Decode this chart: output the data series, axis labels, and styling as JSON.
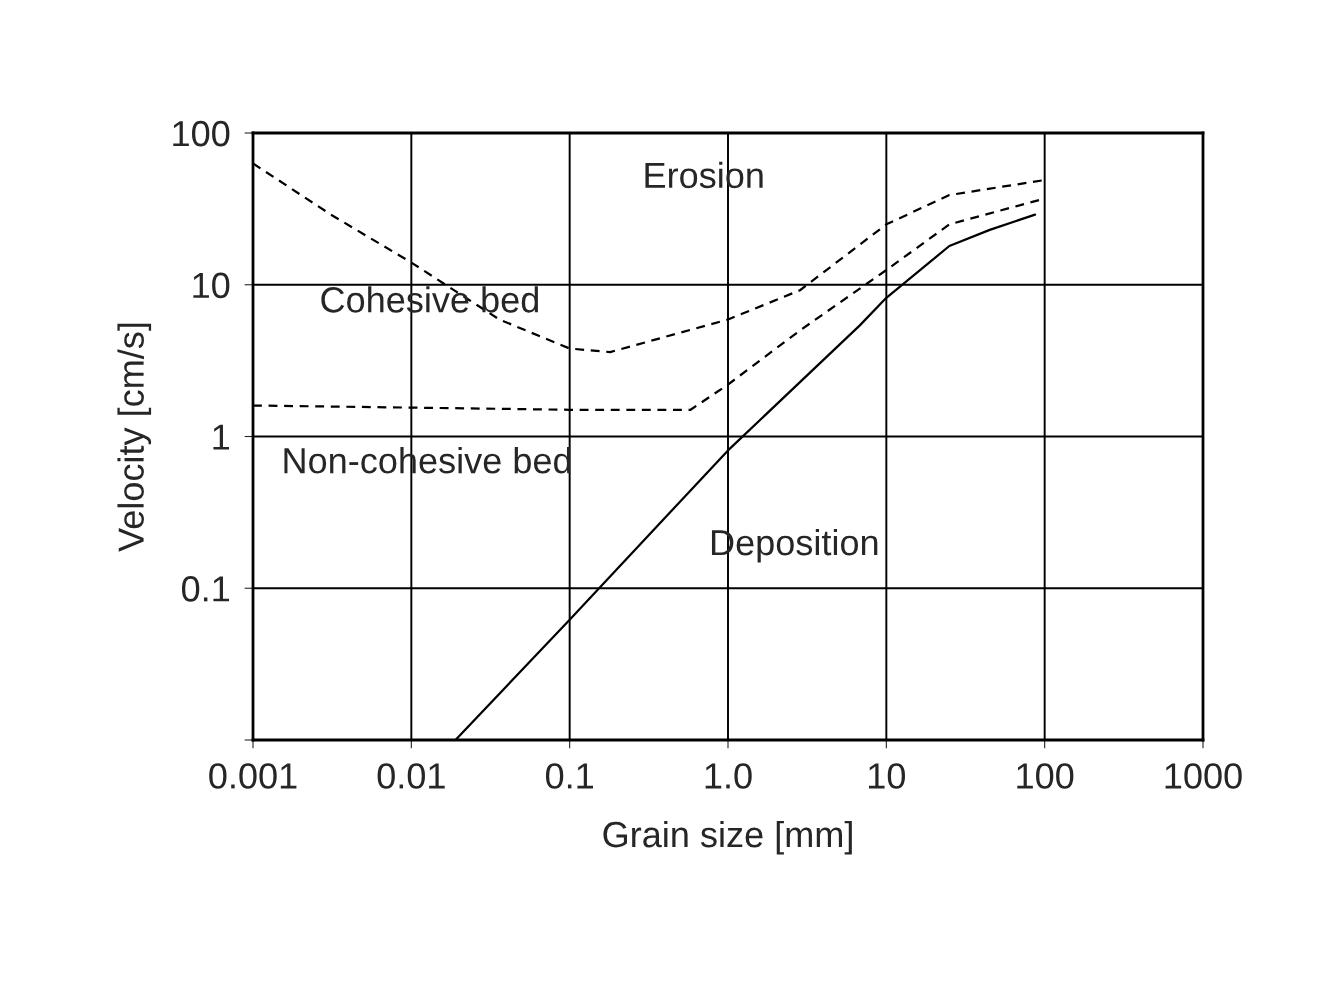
{
  "chart_data": {
    "type": "line",
    "xlabel": "Grain size [mm]",
    "ylabel": "Velocity [cm/s]",
    "log": "xy",
    "grid": true,
    "legend": false,
    "marker": "none",
    "xlim": [
      0.001,
      1000
    ],
    "ylim": [
      0.01,
      100
    ],
    "xticks": [
      0.001,
      0.01,
      0.1,
      {
        "value": 1,
        "label": "1.0"
      },
      10,
      100,
      1000
    ],
    "yticks": [
      {
        "value": 0.01,
        "label": null
      },
      0.1,
      1,
      10,
      100
    ],
    "series": [
      {
        "color": "#000000",
        "line_style": "dashed",
        "x": [
          0.001,
          0.0031,
          0.01,
          0.036,
          0.1,
          0.18,
          1,
          2.85,
          10,
          25,
          100
        ],
        "values": [
          63,
          29,
          14,
          5.9,
          3.8,
          3.6,
          5.9,
          9.2,
          25,
          39,
          49
        ]
      },
      {
        "color": "#000000",
        "line_style": "dashed",
        "x": [
          0.001,
          0.01,
          0.1,
          0.58,
          1,
          2.85,
          10,
          25,
          100
        ],
        "values": [
          1.6,
          1.55,
          1.5,
          1.5,
          2.2,
          5.0,
          12.5,
          25,
          37
        ]
      },
      {
        "color": "#000000",
        "line_style": "solid",
        "x": [
          0.019,
          0.1,
          1,
          6.8,
          10,
          25,
          45,
          87
        ],
        "values": [
          0.01,
          0.062,
          0.81,
          5.4,
          8.2,
          18,
          23,
          29
        ]
      }
    ],
    "annotations": [
      "Erosion",
      "Cohesive bed",
      "Non-cohesive bed",
      "Deposition"
    ]
  }
}
